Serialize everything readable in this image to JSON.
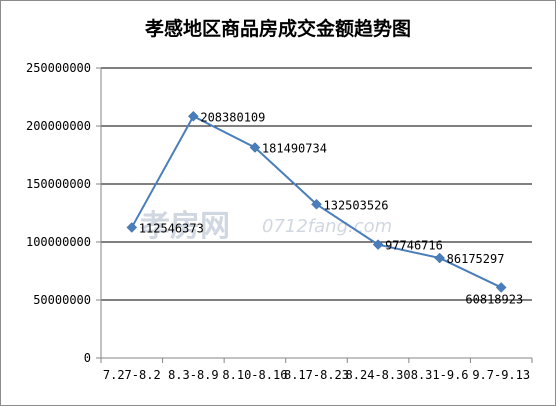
{
  "chart_data": {
    "type": "line",
    "title": "孝感地区商品房成交金额趋势图",
    "categories": [
      "7.27-8.2",
      "8.3-8.9",
      "8.10-8.16",
      "8.17-8.23",
      "8.24-8.30",
      "8.31-9.6",
      "9.7-9.13"
    ],
    "series": [
      {
        "values": [
          112546373,
          208380109,
          181490734,
          132503526,
          97746716,
          86175297,
          60818923
        ],
        "labels": [
          "112546373",
          "208380109",
          "181490734",
          "132503526",
          "97746716",
          "86175297",
          "60818923"
        ]
      }
    ],
    "y_ticks": [
      "0",
      "50000000",
      "100000000",
      "150000000",
      "200000000",
      "250000000"
    ],
    "ylim": [
      0,
      250000000
    ],
    "grid": true,
    "legend": "none",
    "line_color": "#4a7ebb"
  },
  "watermark": {
    "cn": "孝房网",
    "domain": "0712fang.com"
  }
}
